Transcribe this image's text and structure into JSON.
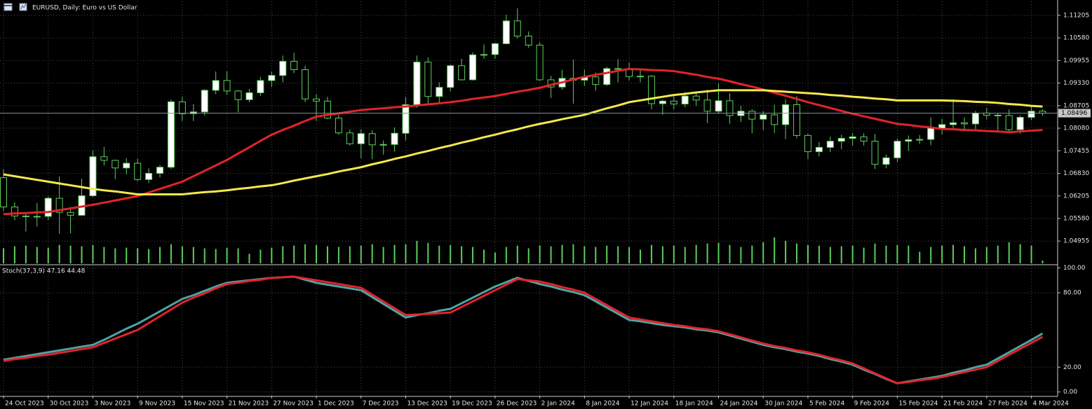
{
  "chart_data": [
    {
      "type": "candlestick",
      "title": "EURUSD, Daily:  Euro vs US Dollar",
      "categories": [
        "24 Oct 2023",
        null,
        null,
        null,
        "30 Oct 2023",
        null,
        null,
        null,
        "3 Nov 2023",
        null,
        null,
        null,
        "9 Nov 2023",
        null,
        null,
        null,
        "15 Nov 2023",
        null,
        null,
        null,
        "21 Nov 2023",
        null,
        null,
        null,
        "27 Nov 2023",
        null,
        null,
        null,
        "1 Dec 2023",
        null,
        null,
        null,
        "7 Dec 2023",
        null,
        null,
        null,
        "13 Dec 2023",
        null,
        null,
        null,
        "19 Dec 2023",
        null,
        null,
        null,
        "26 Dec 2023",
        null,
        null,
        null,
        "2 Jan 2024",
        null,
        null,
        null,
        "8 Jan 2024",
        null,
        null,
        null,
        "12 Jan 2024",
        null,
        null,
        null,
        "18 Jan 2024",
        null,
        null,
        null,
        "24 Jan 2024",
        null,
        null,
        null,
        "30 Jan 2024",
        null,
        null,
        null,
        "5 Feb 2024",
        null,
        null,
        null,
        "9 Feb 2024",
        null,
        null,
        null,
        "15 Feb 2024",
        null,
        null,
        null,
        "21 Feb 2024",
        null,
        null,
        null,
        "27 Feb 2024",
        null,
        null,
        null,
        "4 Mar 2024",
        null
      ],
      "open": [
        1.0671,
        1.059,
        1.0565,
        1.0564,
        1.0564,
        1.0614,
        1.0575,
        1.0567,
        1.0621,
        1.0729,
        1.0719,
        1.0698,
        1.0711,
        1.0666,
        1.0683,
        1.07,
        1.0881,
        1.0848,
        1.0853,
        1.0913,
        1.094,
        1.0911,
        1.0887,
        1.0906,
        1.094,
        1.0954,
        1.0993,
        1.097,
        1.0889,
        1.0883,
        1.0836,
        1.0795,
        1.0765,
        1.0793,
        1.0762,
        1.0763,
        1.0794,
        1.0873,
        1.0991,
        1.0896,
        1.0921,
        1.0981,
        1.0942,
        1.1011,
        1.1012,
        1.1042,
        1.1105,
        1.1063,
        1.1038,
        1.0942,
        1.0922,
        1.0946,
        1.0941,
        1.095,
        1.0929,
        1.0973,
        1.0972,
        1.0951,
        1.0952,
        1.0876,
        1.0883,
        1.0875,
        1.0897,
        1.0886,
        1.0855,
        1.0884,
        1.0843,
        1.0855,
        1.0833,
        1.0845,
        1.0818,
        1.0873,
        1.0788,
        1.0743,
        1.0755,
        1.0772,
        1.078,
        1.0784,
        1.0772,
        1.0708,
        1.0726,
        1.0772,
        1.0776,
        1.0777,
        1.0808,
        1.0818,
        1.0823,
        1.082,
        1.085,
        1.0844,
        1.0843,
        1.0804,
        1.0838,
        1.0855
      ],
      "high": [
        1.0695,
        1.0603,
        1.0571,
        1.0601,
        1.0619,
        1.0675,
        1.059,
        1.0668,
        1.0747,
        1.0756,
        1.0721,
        1.0725,
        1.0723,
        1.0697,
        1.0706,
        1.0887,
        1.0895,
        1.0875,
        1.0916,
        1.0965,
        1.0966,
        1.0914,
        1.0917,
        1.095,
        1.0965,
        1.1009,
        1.1017,
        1.0981,
        1.0902,
        1.0895,
        1.0845,
        1.0805,
        1.0805,
        1.0802,
        1.0774,
        1.081,
        1.0894,
        1.1009,
        1.1004,
        1.0935,
        1.0985,
        1.1,
        1.1018,
        1.104,
        1.1045,
        1.1122,
        1.114,
        1.1076,
        1.1046,
        1.0953,
        1.097,
        1.0998,
        1.097,
        1.0962,
        1.0978,
        1.0999,
        1.099,
        1.097,
        1.0955,
        1.0887,
        1.0898,
        1.0908,
        1.0906,
        1.0915,
        1.0932,
        1.0905,
        1.087,
        1.086,
        1.0855,
        1.0873,
        1.0888,
        1.0897,
        1.0793,
        1.077,
        1.0785,
        1.079,
        1.0795,
        1.0794,
        1.0792,
        1.0735,
        1.0779,
        1.0788,
        1.0789,
        1.0838,
        1.0834,
        1.0888,
        1.0838,
        1.0856,
        1.0865,
        1.085,
        1.086,
        1.0843,
        1.0868,
        1.086
      ],
      "low": [
        1.0579,
        1.0553,
        1.0522,
        1.0536,
        1.0554,
        1.0516,
        1.0517,
        1.0565,
        1.0617,
        1.0705,
        1.0667,
        1.068,
        1.0661,
        1.0656,
        1.0672,
        1.0695,
        1.0828,
        1.0828,
        1.0843,
        1.0902,
        1.09,
        1.0852,
        1.088,
        1.0897,
        1.0922,
        1.0935,
        1.096,
        1.088,
        1.0828,
        1.0833,
        1.079,
        1.076,
        1.0725,
        1.0722,
        1.0735,
        1.0743,
        1.0774,
        1.0865,
        1.0876,
        1.088,
        1.091,
        1.094,
        1.094,
        1.1,
        1.1,
        1.104,
        1.1056,
        1.1031,
        1.0939,
        1.0892,
        1.0915,
        1.0876,
        1.0925,
        1.0912,
        1.0925,
        1.0935,
        1.094,
        1.0935,
        1.086,
        1.0845,
        1.086,
        1.0866,
        1.087,
        1.0822,
        1.085,
        1.082,
        1.0825,
        1.0794,
        1.0803,
        1.0795,
        1.0778,
        1.078,
        1.0722,
        1.073,
        1.0742,
        1.075,
        1.076,
        1.076,
        1.0695,
        1.0697,
        1.0714,
        1.0745,
        1.0765,
        1.0761,
        1.079,
        1.0807,
        1.0804,
        1.0805,
        1.0833,
        1.0796,
        1.0796,
        1.0793,
        1.083,
        1.0842
      ],
      "close": [
        1.059,
        1.0565,
        1.0564,
        1.0564,
        1.0614,
        1.0575,
        1.0567,
        1.0621,
        1.0729,
        1.0719,
        1.0698,
        1.0711,
        1.0666,
        1.0683,
        1.07,
        1.0881,
        1.0848,
        1.0853,
        1.0913,
        1.094,
        1.0911,
        1.0887,
        1.0906,
        1.094,
        1.0954,
        1.0993,
        1.097,
        1.0889,
        1.0883,
        1.0836,
        1.0795,
        1.0765,
        1.0793,
        1.0762,
        1.0763,
        1.0794,
        1.0873,
        1.0991,
        1.0896,
        1.0921,
        1.0981,
        1.0942,
        1.1011,
        1.1012,
        1.1042,
        1.1105,
        1.1063,
        1.1038,
        1.0942,
        1.0922,
        1.0946,
        1.0941,
        1.095,
        1.0929,
        1.0973,
        1.0972,
        1.0951,
        1.0952,
        1.0876,
        1.0883,
        1.0875,
        1.0897,
        1.0886,
        1.0855,
        1.0884,
        1.0843,
        1.0855,
        1.0833,
        1.0845,
        1.0818,
        1.0873,
        1.0788,
        1.0743,
        1.0755,
        1.0772,
        1.078,
        1.0784,
        1.0772,
        1.0708,
        1.0726,
        1.0772,
        1.0776,
        1.0777,
        1.0808,
        1.0818,
        1.0823,
        1.082,
        1.085,
        1.0844,
        1.0843,
        1.0804,
        1.0838,
        1.0855,
        1.08496
      ],
      "bull_color": "#ffffff",
      "bear_color": "#000000",
      "wick_color": "#5ccf5c",
      "moving_averages": [
        {
          "color": "#e3232a",
          "values": [
            1.057,
            1.0572,
            1.0573,
            1.0575,
            1.0576,
            1.0581,
            1.0586,
            1.0591,
            1.0596,
            1.0602,
            1.0608,
            1.0614,
            1.062,
            1.063,
            1.064,
            1.065,
            1.066,
            1.0675,
            1.069,
            1.0705,
            1.072,
            1.0738,
            1.0755,
            1.0773,
            1.079,
            1.0803,
            1.0815,
            1.0828,
            1.084,
            1.0845,
            1.0849,
            1.0854,
            1.0858,
            1.0861,
            1.0863,
            1.0866,
            1.0868,
            1.0871,
            1.0874,
            1.0877,
            1.088,
            1.0884,
            1.0889,
            1.0893,
            1.0897,
            1.0903,
            1.0909,
            1.0914,
            1.092,
            1.0928,
            1.0935,
            1.0943,
            1.095,
            1.0956,
            1.0961,
            1.0967,
            1.0972,
            1.0971,
            1.0969,
            1.0968,
            1.0966,
            1.0961,
            1.0956,
            1.095,
            1.0945,
            1.0938,
            1.093,
            1.0923,
            1.0915,
            1.0906,
            1.0898,
            1.0889,
            1.088,
            1.0872,
            1.0864,
            1.0856,
            1.0848,
            1.0841,
            1.0834,
            1.0827,
            1.082,
            1.0817,
            1.0813,
            1.081,
            1.0806,
            1.0805,
            1.0803,
            1.0802,
            1.08,
            1.0799,
            1.0797,
            1.0799,
            1.0801,
            1.0803
          ]
        },
        {
          "color": "#f3e94c",
          "values": [
            1.068,
            1.0675,
            1.067,
            1.0665,
            1.066,
            1.0655,
            1.065,
            1.0645,
            1.064,
            1.0636,
            1.0633,
            1.0629,
            1.0625,
            1.0625,
            1.0625,
            1.0625,
            1.0625,
            1.0628,
            1.0631,
            1.0633,
            1.0636,
            1.064,
            1.0643,
            1.0647,
            1.065,
            1.0656,
            1.0663,
            1.0669,
            1.0675,
            1.0681,
            1.0688,
            1.0694,
            1.07,
            1.0708,
            1.0715,
            1.0723,
            1.073,
            1.0738,
            1.0745,
            1.0753,
            1.076,
            1.0768,
            1.0775,
            1.0783,
            1.079,
            1.0798,
            1.0805,
            1.0813,
            1.082,
            1.0826,
            1.0833,
            1.0839,
            1.0845,
            1.0854,
            1.0863,
            1.0871,
            1.088,
            1.0885,
            1.089,
            1.0895,
            1.09,
            1.0903,
            1.0907,
            1.091,
            1.0913,
            1.0913,
            1.0913,
            1.0913,
            1.0913,
            1.0911,
            1.0909,
            1.0907,
            1.0905,
            1.0903,
            1.09,
            1.0898,
            1.0895,
            1.0893,
            1.089,
            1.0888,
            1.0885,
            1.0885,
            1.0885,
            1.0885,
            1.0885,
            1.0884,
            1.0883,
            1.0881,
            1.088,
            1.0878,
            1.0875,
            1.0873,
            1.087,
            1.0868
          ]
        }
      ],
      "volume": {
        "color": "#5ccf5c",
        "values": [
          22,
          25,
          26,
          24,
          23,
          27,
          26,
          25,
          27,
          24,
          22,
          23,
          22,
          21,
          24,
          28,
          25,
          24,
          22,
          21,
          23,
          22,
          14,
          20,
          23,
          25,
          26,
          28,
          27,
          25,
          24,
          25,
          26,
          28,
          24,
          27,
          28,
          33,
          30,
          26,
          27,
          25,
          24,
          20,
          16,
          24,
          26,
          22,
          26,
          25,
          27,
          28,
          25,
          24,
          26,
          25,
          24,
          20,
          27,
          25,
          26,
          24,
          27,
          29,
          30,
          27,
          24,
          26,
          31,
          38,
          33,
          29,
          27,
          26,
          24,
          25,
          26,
          23,
          29,
          26,
          27,
          26,
          17,
          24,
          26,
          27,
          25,
          22,
          24,
          26,
          31,
          28,
          26,
          4
        ]
      },
      "ylim": [
        1.0432,
        1.1159
      ],
      "yticks": [
        1.11205,
        {
          "value": 1.1058,
          "label": "1.10580"
        },
        1.09955,
        {
          "value": 1.0933,
          "label": "1.09330"
        },
        1.08705,
        {
          "value": 1.0808,
          "label": "1.08080"
        },
        1.07455,
        {
          "value": 1.0683,
          "label": "1.06830"
        },
        1.06205,
        {
          "value": 1.0558,
          "label": "1.05580"
        },
        1.04955
      ],
      "bid_line": {
        "value": 1.08496,
        "label": "1.08496"
      },
      "grid": true
    },
    {
      "type": "line",
      "title": "Stoch(37,3,9) 47.16 44.48",
      "series": [
        {
          "color": "#4fa3a5",
          "values": [
            26,
            27.5,
            29,
            30.5,
            32,
            33.5,
            35,
            36.5,
            38,
            42,
            46.5,
            51,
            55,
            60,
            65,
            70,
            75,
            78,
            81.5,
            85,
            88,
            89,
            90,
            91,
            92,
            92.5,
            93,
            90.5,
            88,
            86.5,
            85,
            83.5,
            82,
            76.5,
            71,
            65.5,
            60,
            62,
            63.5,
            65.5,
            67,
            71.5,
            76,
            80.5,
            85,
            88.5,
            92,
            89.5,
            87,
            85,
            82.5,
            80.5,
            78,
            73,
            68,
            63,
            58,
            57,
            55.5,
            54,
            53,
            52,
            50.5,
            49.5,
            48,
            45.5,
            43,
            40.5,
            38,
            36,
            34.5,
            32.5,
            31,
            29,
            26.5,
            24.5,
            22,
            18,
            14.5,
            10.5,
            7,
            8.5,
            10,
            11.5,
            13,
            15.5,
            17.5,
            20,
            22,
            27,
            32,
            37,
            42,
            47.16
          ]
        },
        {
          "color": "#e3232a",
          "values": [
            25,
            26.5,
            27.5,
            29,
            30,
            31.5,
            33,
            34.5,
            36,
            39.5,
            43,
            46.5,
            50,
            55.5,
            61,
            66.5,
            72,
            76,
            79.5,
            83.5,
            87,
            88,
            89.5,
            90.5,
            92,
            92.5,
            93,
            91.5,
            90,
            88.5,
            87,
            85.5,
            84,
            78.5,
            73,
            67.5,
            62,
            62.5,
            63,
            63.5,
            64,
            68.5,
            73,
            77.5,
            82,
            86.5,
            91,
            90,
            89,
            87,
            84.5,
            82.5,
            80,
            75,
            70,
            65,
            60,
            58.5,
            57,
            55.5,
            54,
            53,
            51.5,
            50.5,
            49,
            46.5,
            44,
            41.5,
            39,
            37,
            35.5,
            33.5,
            32,
            30,
            27.5,
            25.5,
            23,
            19,
            15,
            11,
            7,
            8,
            9.5,
            10.5,
            12,
            14,
            16,
            18,
            20,
            25,
            30,
            34.8,
            39.6,
            44.48
          ]
        }
      ],
      "ylim": [
        -3,
        102
      ],
      "yticks": [
        {
          "value": 100,
          "label": "100.00"
        },
        {
          "value": 80,
          "label": "80.00"
        },
        {
          "value": 20,
          "label": "20.00"
        },
        {
          "value": 0,
          "label": "0.00"
        }
      ],
      "grid": true
    }
  ]
}
